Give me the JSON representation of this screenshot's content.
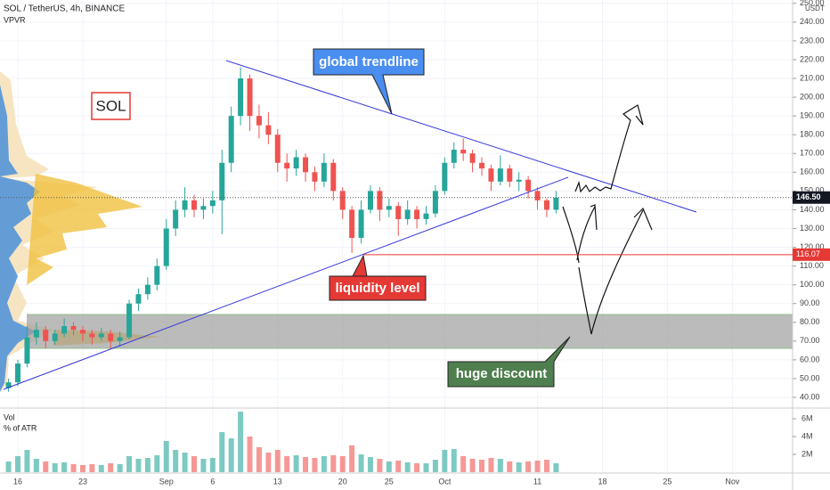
{
  "chart_data": {
    "type": "candlestick",
    "title": "SOL / TetherUS, 4h, BINANCE",
    "indicator": "VPVR",
    "symbol_label": "SOL",
    "y_axis_unit": "USDT",
    "annotations": {
      "trendline": "global trendline",
      "liquidity": "liquidity level",
      "discount": "huge discount"
    },
    "categories": [
      null,
      "16",
      null,
      null,
      null,
      null,
      null,
      null,
      "23",
      null,
      null,
      null,
      null,
      null,
      null,
      null,
      null,
      "Sep",
      null,
      null,
      null,
      null,
      "6",
      null,
      null,
      null,
      null,
      null,
      null,
      "13",
      null,
      null,
      null,
      null,
      null,
      null,
      "20",
      null,
      null,
      null,
      null,
      "25",
      null,
      null,
      null,
      null,
      null,
      "Oct",
      null,
      null,
      null,
      null,
      null,
      null,
      null,
      null,
      null,
      "11",
      null,
      null,
      null,
      null,
      null,
      null,
      "18",
      null,
      null,
      null,
      null,
      null,
      null,
      "25",
      null,
      null,
      null,
      null,
      null,
      null,
      "Nov",
      null,
      null,
      null,
      null,
      null
    ],
    "open": [
      45,
      48,
      58,
      72,
      76,
      70,
      74,
      78,
      76,
      74,
      72,
      74,
      70,
      72,
      90,
      95,
      100,
      110,
      130,
      140,
      145,
      140,
      142,
      145,
      165,
      190,
      210,
      190,
      185,
      180,
      165,
      162,
      168,
      160,
      155,
      165,
      150,
      140,
      125,
      140,
      150,
      140,
      142,
      135,
      140,
      135,
      138,
      150,
      165,
      172,
      170,
      165,
      162,
      155,
      162,
      155,
      156,
      150,
      145,
      140,
      null,
      null,
      null,
      null,
      null,
      null,
      null,
      null,
      null,
      null,
      null,
      null,
      null,
      null,
      null,
      null,
      null,
      null,
      null,
      null,
      null,
      null,
      null,
      null
    ],
    "high": [
      50,
      60,
      78,
      80,
      78,
      76,
      82,
      80,
      78,
      76,
      77,
      76,
      75,
      92,
      98,
      104,
      114,
      135,
      145,
      152,
      148,
      146,
      150,
      172,
      195,
      216,
      212,
      196,
      192,
      183,
      170,
      172,
      170,
      163,
      170,
      167,
      152,
      142,
      145,
      153,
      152,
      146,
      144,
      145,
      142,
      142,
      153,
      168,
      176,
      178,
      172,
      168,
      164,
      169,
      164,
      160,
      158,
      152,
      146,
      150,
      null,
      null,
      null,
      null,
      null,
      null,
      null,
      null,
      null,
      null,
      null,
      null,
      null,
      null,
      null,
      null,
      null,
      null,
      null,
      null,
      null,
      null,
      null,
      null
    ],
    "low": [
      43,
      46,
      56,
      68,
      66,
      68,
      72,
      73,
      70,
      68,
      70,
      66,
      67,
      71,
      86,
      92,
      97,
      108,
      126,
      136,
      136,
      135,
      138,
      127,
      160,
      185,
      182,
      178,
      175,
      160,
      155,
      158,
      155,
      150,
      152,
      145,
      135,
      117,
      122,
      138,
      134,
      136,
      126,
      132,
      130,
      132,
      136,
      148,
      162,
      166,
      160,
      158,
      150,
      153,
      152,
      150,
      146,
      140,
      136,
      138,
      null,
      null,
      null,
      null,
      null,
      null,
      null,
      null,
      null,
      null,
      null,
      null,
      null,
      null,
      null,
      null,
      null,
      null,
      null,
      null,
      null,
      null,
      null,
      null
    ],
    "close": [
      48,
      58,
      72,
      76,
      70,
      74,
      78,
      76,
      74,
      72,
      74,
      70,
      72,
      90,
      95,
      100,
      110,
      130,
      140,
      145,
      140,
      142,
      145,
      165,
      190,
      210,
      190,
      185,
      180,
      165,
      162,
      168,
      160,
      155,
      165,
      150,
      140,
      125,
      140,
      150,
      140,
      142,
      135,
      140,
      135,
      138,
      150,
      165,
      172,
      170,
      165,
      162,
      155,
      162,
      155,
      156,
      150,
      145,
      140,
      146.5,
      null,
      null,
      null,
      null,
      null,
      null,
      null,
      null,
      null,
      null,
      null,
      null,
      null,
      null,
      null,
      null,
      null,
      null,
      null,
      null,
      null,
      null,
      null,
      null
    ],
    "ylim": [
      34.3,
      251.8
    ],
    "yticks": [
      {
        "value": 40,
        "label": "40.00"
      },
      {
        "value": 50,
        "label": "50.00"
      },
      {
        "value": 60,
        "label": "60.00"
      },
      {
        "value": 70,
        "label": "70.00"
      },
      {
        "value": 80,
        "label": "80.00"
      },
      {
        "value": 90,
        "label": "90.00"
      },
      {
        "value": 100,
        "label": "100.00"
      },
      {
        "value": 110,
        "label": "110.00"
      },
      {
        "value": 120,
        "label": "120.00"
      },
      {
        "value": 130,
        "label": "130.00"
      },
      {
        "value": 140,
        "label": "140.00"
      },
      {
        "value": 150,
        "label": "150.00"
      },
      {
        "value": 160,
        "label": "160.00"
      },
      {
        "value": 170,
        "label": "170.00"
      },
      {
        "value": 180,
        "label": "180.00"
      },
      {
        "value": 190,
        "label": "190.00"
      },
      {
        "value": 200,
        "label": "200.00"
      },
      {
        "value": 210,
        "label": "210.00"
      },
      {
        "value": 220,
        "label": "220.00"
      },
      {
        "value": 230,
        "label": "230.00"
      },
      {
        "value": 240,
        "label": "240.00"
      },
      {
        "value": 250,
        "label": "250.00"
      }
    ],
    "last_price": {
      "value": 146.5,
      "label": "146.50"
    },
    "level": {
      "value": 116.07,
      "label": "116.07"
    },
    "up_color": "#26a69a",
    "down_color": "#ef5350",
    "grid": true,
    "volume": {
      "title": "Vol",
      "subtitle": "% of ATR",
      "values": [
        1200000,
        1800000,
        2500000,
        1500000,
        1200000,
        1000000,
        1100000,
        900000,
        800000,
        900000,
        800000,
        1000000,
        900000,
        1800000,
        1500000,
        1600000,
        1900000,
        3500000,
        2500000,
        2200000,
        1800000,
        1500000,
        1600000,
        4500000,
        3800000,
        6800000,
        4000000,
        2800000,
        2200000,
        2500000,
        1800000,
        1900000,
        1700000,
        1600000,
        1800000,
        1900000,
        1800000,
        3000000,
        2000000,
        1700000,
        1500000,
        1200000,
        1300000,
        1100000,
        1000000,
        1000000,
        1400000,
        2500000,
        2600000,
        1800000,
        1500000,
        1400000,
        1600000,
        1500000,
        1200000,
        1100000,
        1200000,
        1300000,
        1400000,
        1000000,
        null,
        null,
        null,
        null,
        null,
        null,
        null,
        null,
        null,
        null,
        null,
        null,
        null,
        null,
        null,
        null,
        null,
        null,
        null,
        null,
        null,
        null,
        null,
        null
      ],
      "ylim": [
        0,
        7000000
      ],
      "yticks": [
        {
          "value": 2000000,
          "label": "2M"
        },
        {
          "value": 4000000,
          "label": "4M"
        },
        {
          "value": 6000000,
          "label": "6M"
        }
      ]
    }
  }
}
